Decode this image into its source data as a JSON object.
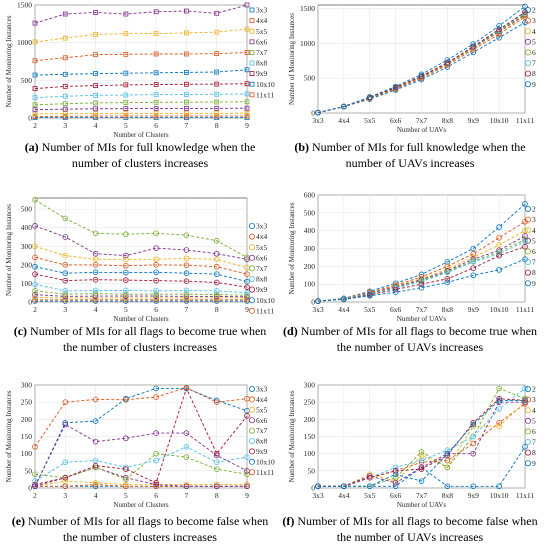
{
  "chart_data": [
    {
      "type": "line",
      "panel": "a",
      "caption_letter": "(a)",
      "caption_text": "Number of MIs for full knowledge when the number of clusters increases",
      "xlabel": "Number of Clusters",
      "ylabel": "Number of Monitoring Instances",
      "x": [
        2,
        3,
        4,
        5,
        6,
        7,
        8,
        9
      ],
      "x_ticks": [
        "2",
        "3",
        "4",
        "5",
        "6",
        "7",
        "8",
        "9"
      ],
      "y_ticks": [
        0,
        500,
        1000,
        1500
      ],
      "ylim": [
        0,
        1500
      ],
      "grid": true,
      "legend": "right",
      "series": [
        {
          "name": "3x3",
          "color": "#0072BD",
          "values": [
            5,
            5,
            5,
            5,
            5,
            5,
            5,
            5
          ]
        },
        {
          "name": "4x4",
          "color": "#D95319",
          "values": [
            20,
            22,
            25,
            25,
            25,
            25,
            25,
            25
          ]
        },
        {
          "name": "5x5",
          "color": "#EDB120",
          "values": [
            55,
            58,
            60,
            62,
            62,
            63,
            63,
            64
          ]
        },
        {
          "name": "6x6",
          "color": "#7E2F8E",
          "values": [
            110,
            118,
            122,
            125,
            126,
            127,
            128,
            130
          ]
        },
        {
          "name": "7x7",
          "color": "#77AC30",
          "values": [
            175,
            190,
            200,
            205,
            208,
            210,
            212,
            215
          ]
        },
        {
          "name": "8x8",
          "color": "#4DBEEE",
          "values": [
            270,
            290,
            300,
            305,
            310,
            312,
            315,
            320
          ]
        },
        {
          "name": "9x9",
          "color": "#A2142F",
          "values": [
            390,
            420,
            430,
            440,
            445,
            448,
            450,
            455
          ]
        },
        {
          "name": "10x10",
          "color": "#0072BD",
          "values": [
            570,
            580,
            590,
            595,
            600,
            605,
            610,
            640
          ]
        },
        {
          "name": "11x11",
          "color": "#D95319",
          "values": [
            760,
            800,
            840,
            845,
            850,
            850,
            855,
            870
          ]
        },
        {
          "name": "",
          "color": "#EDB120",
          "values": [
            1010,
            1060,
            1110,
            1120,
            1120,
            1130,
            1140,
            1180
          ]
        },
        {
          "name": "",
          "color": "#7E2F8E",
          "values": [
            1260,
            1380,
            1400,
            1380,
            1410,
            1420,
            1390,
            1520
          ]
        }
      ]
    },
    {
      "type": "line",
      "panel": "b",
      "caption_letter": "(b)",
      "caption_text": "Number of MIs for full knowledge when the number of UAVs increases",
      "xlabel": "Number of UAVs",
      "ylabel": "Number of Monitoring Instances",
      "x": [
        "3x3",
        "4x4",
        "5x5",
        "6x6",
        "7x7",
        "8x8",
        "9x9",
        "10x10",
        "11x11"
      ],
      "x_ticks": [
        "3x3",
        "4x4",
        "5x5",
        "6x6",
        "7x7",
        "8x8",
        "9x9",
        "10x10",
        "11x11"
      ],
      "y_ticks": [
        0,
        500,
        1000,
        1500
      ],
      "ylim": [
        0,
        1550
      ],
      "grid": true,
      "legend": "top-right",
      "series": [
        {
          "name": "2",
          "color": "#0072BD",
          "values": [
            5,
            90,
            200,
            330,
            480,
            660,
            870,
            1080,
            1300
          ]
        },
        {
          "name": "3",
          "color": "#D95319",
          "values": [
            5,
            90,
            210,
            345,
            500,
            690,
            910,
            1130,
            1380
          ]
        },
        {
          "name": "4",
          "color": "#EDB120",
          "values": [
            5,
            92,
            215,
            355,
            515,
            700,
            930,
            1160,
            1400
          ]
        },
        {
          "name": "5",
          "color": "#7E2F8E",
          "values": [
            5,
            92,
            220,
            360,
            520,
            710,
            940,
            1170,
            1410
          ]
        },
        {
          "name": "6",
          "color": "#77AC30",
          "values": [
            5,
            92,
            220,
            362,
            525,
            715,
            945,
            1180,
            1420
          ]
        },
        {
          "name": "7",
          "color": "#4DBEEE",
          "values": [
            5,
            93,
            222,
            365,
            530,
            720,
            950,
            1190,
            1440
          ]
        },
        {
          "name": "8",
          "color": "#A2142F",
          "values": [
            5,
            93,
            222,
            365,
            530,
            720,
            955,
            1200,
            1450
          ]
        },
        {
          "name": "9",
          "color": "#0072BD",
          "values": [
            5,
            93,
            230,
            380,
            555,
            760,
            990,
            1250,
            1530
          ]
        }
      ]
    },
    {
      "type": "line",
      "panel": "c",
      "caption_letter": "(c)",
      "caption_text": "Number of MIs for all flags to become true when the number of clusters increases",
      "xlabel": "Number of Clusters",
      "ylabel": "Number of Monitoring Instances",
      "x": [
        2,
        3,
        4,
        5,
        6,
        7,
        8,
        9
      ],
      "x_ticks": [
        "2",
        "3",
        "4",
        "5",
        "6",
        "7",
        "8",
        "9"
      ],
      "y_ticks": [
        0,
        100,
        200,
        300,
        400,
        500
      ],
      "ylim": [
        0,
        560
      ],
      "grid": true,
      "legend": "right",
      "series": [
        {
          "name": "3x3",
          "color": "#0072BD",
          "values": [
            5,
            5,
            5,
            5,
            5,
            5,
            5,
            5
          ]
        },
        {
          "name": "4x4",
          "color": "#D95319",
          "values": [
            12,
            12,
            12,
            12,
            12,
            12,
            12,
            12
          ]
        },
        {
          "name": "5x5",
          "color": "#EDB120",
          "values": [
            25,
            22,
            22,
            22,
            22,
            22,
            22,
            22
          ]
        },
        {
          "name": "6x6",
          "color": "#7E2F8E",
          "values": [
            40,
            30,
            32,
            32,
            32,
            30,
            30,
            28
          ]
        },
        {
          "name": "7x7",
          "color": "#77AC30",
          "values": [
            60,
            42,
            45,
            42,
            42,
            42,
            40,
            36
          ]
        },
        {
          "name": "8x8",
          "color": "#4DBEEE",
          "values": [
            95,
            60,
            62,
            62,
            60,
            62,
            60,
            50
          ]
        },
        {
          "name": "9x9",
          "color": "#A2142F",
          "values": [
            150,
            115,
            120,
            118,
            115,
            112,
            105,
            80
          ]
        },
        {
          "name": "10x10",
          "color": "#0072BD",
          "values": [
            190,
            155,
            160,
            158,
            160,
            155,
            150,
            110
          ]
        },
        {
          "name": "11x11",
          "color": "#D95319",
          "values": [
            240,
            200,
            200,
            195,
            200,
            198,
            190,
            150
          ]
        },
        {
          "name": "",
          "color": "#EDB120",
          "values": [
            300,
            250,
            230,
            230,
            230,
            235,
            230,
            185
          ]
        },
        {
          "name": "",
          "color": "#7E2F8E",
          "values": [
            410,
            350,
            260,
            250,
            290,
            280,
            260,
            230
          ]
        },
        {
          "name": "",
          "color": "#77AC30",
          "values": [
            550,
            450,
            370,
            365,
            370,
            360,
            330,
            240
          ]
        }
      ]
    },
    {
      "type": "line",
      "panel": "d",
      "caption_letter": "(d)",
      "caption_text": "Number of MIs for all flags to become true when the number of UAVs increases",
      "xlabel": "Number of UAVs",
      "ylabel": "Number of Monitoring Instances",
      "x": [
        "3x3",
        "4x4",
        "5x5",
        "6x6",
        "7x7",
        "8x8",
        "9x9",
        "10x10",
        "11x11"
      ],
      "x_ticks": [
        "3x3",
        "4x4",
        "5x5",
        "6x6",
        "7x7",
        "8x8",
        "9x9",
        "10x10",
        "11x11"
      ],
      "y_ticks": [
        0,
        100,
        200,
        300,
        400,
        500,
        600
      ],
      "ylim": [
        0,
        600
      ],
      "grid": true,
      "legend": "top-right",
      "series": [
        {
          "name": "2",
          "color": "#0072BD",
          "values": [
            5,
            20,
            60,
            105,
            155,
            225,
            300,
            420,
            550
          ]
        },
        {
          "name": "3",
          "color": "#D95319",
          "values": [
            5,
            20,
            55,
            95,
            140,
            200,
            270,
            360,
            450
          ]
        },
        {
          "name": "4",
          "color": "#EDB120",
          "values": [
            5,
            18,
            50,
            90,
            130,
            185,
            250,
            320,
            400
          ]
        },
        {
          "name": "5",
          "color": "#7E2F8E",
          "values": [
            5,
            18,
            48,
            85,
            125,
            175,
            240,
            290,
            370
          ]
        },
        {
          "name": "6",
          "color": "#77AC30",
          "values": [
            5,
            18,
            45,
            80,
            120,
            170,
            230,
            280,
            350
          ]
        },
        {
          "name": "7",
          "color": "#4DBEEE",
          "values": [
            5,
            18,
            45,
            78,
            115,
            165,
            225,
            270,
            340
          ]
        },
        {
          "name": "8",
          "color": "#A2142F",
          "values": [
            5,
            15,
            40,
            70,
            100,
            130,
            190,
            260,
            310
          ]
        },
        {
          "name": "9",
          "color": "#0072BD",
          "values": [
            5,
            15,
            35,
            55,
            80,
            110,
            150,
            180,
            240
          ]
        }
      ]
    },
    {
      "type": "line",
      "panel": "e",
      "caption_letter": "(e)",
      "caption_text": "Number of MIs for all flags to become false when the number of clusters increases",
      "xlabel": "Number of Clusters",
      "ylabel": "Number of Monitoring Instances",
      "x": [
        2,
        3,
        4,
        5,
        6,
        7,
        8,
        9
      ],
      "x_ticks": [
        "2",
        "3",
        "4",
        "5",
        "6",
        "7",
        "8",
        "9"
      ],
      "y_ticks": [
        0,
        50,
        100,
        150,
        200,
        250,
        300
      ],
      "ylim": [
        0,
        300
      ],
      "grid": true,
      "legend": "right",
      "series": [
        {
          "name": "3x3",
          "color": "#0072BD",
          "values": [
            5,
            5,
            5,
            5,
            5,
            5,
            5,
            5
          ]
        },
        {
          "name": "4x4",
          "color": "#D95319",
          "values": [
            5,
            5,
            10,
            5,
            5,
            5,
            5,
            5
          ]
        },
        {
          "name": "5x5",
          "color": "#EDB120",
          "values": [
            5,
            20,
            15,
            10,
            10,
            10,
            10,
            10
          ]
        },
        {
          "name": "6x6",
          "color": "#7E2F8E",
          "values": [
            5,
            30,
            60,
            30,
            10,
            5,
            5,
            5
          ]
        },
        {
          "name": "7x7",
          "color": "#77AC30",
          "values": [
            40,
            30,
            60,
            25,
            100,
            90,
            55,
            40
          ]
        },
        {
          "name": "8x8",
          "color": "#4DBEEE",
          "values": [
            20,
            75,
            80,
            60,
            80,
            120,
            75,
            90
          ]
        },
        {
          "name": "9x9",
          "color": "#A2142F",
          "values": [
            10,
            30,
            65,
            55,
            15,
            290,
            100,
            210
          ]
        },
        {
          "name": "10x10",
          "color": "#0072BD",
          "values": [
            5,
            190,
            195,
            260,
            290,
            290,
            255,
            225
          ]
        },
        {
          "name": "11x11",
          "color": "#D95319",
          "values": [
            120,
            250,
            258,
            257,
            265,
            292,
            250,
            260
          ]
        },
        {
          "name": "",
          "color": "#7E2F8E",
          "values": [
            5,
            185,
            135,
            145,
            160,
            160,
            95,
            50
          ]
        }
      ]
    },
    {
      "type": "line",
      "panel": "f",
      "caption_letter": "(f)",
      "caption_text": "Number of MIs for all flags to become false when the number of UAVs increases",
      "xlabel": "Number of UAVs",
      "ylabel": "Number of Monitoring Instances",
      "x": [
        "3x3",
        "4x4",
        "5x5",
        "6x6",
        "7x7",
        "8x8",
        "9x9",
        "10x10",
        "11x11"
      ],
      "x_ticks": [
        "3x3",
        "4x4",
        "5x5",
        "6x6",
        "7x7",
        "8x8",
        "9x9",
        "10x10",
        "11x11"
      ],
      "y_ticks": [
        0,
        50,
        100,
        150,
        200,
        250,
        300
      ],
      "ylim": [
        0,
        300
      ],
      "grid": true,
      "legend": "right",
      "series": [
        {
          "name": "2",
          "color": "#0072BD",
          "values": [
            5,
            5,
            5,
            5,
            60,
            5,
            5,
            5,
            120
          ]
        },
        {
          "name": "3",
          "color": "#D95319",
          "values": [
            5,
            5,
            30,
            50,
            75,
            80,
            130,
            190,
            245
          ]
        },
        {
          "name": "4",
          "color": "#EDB120",
          "values": [
            5,
            5,
            40,
            20,
            95,
            60,
            180,
            180,
            250
          ]
        },
        {
          "name": "5",
          "color": "#7E2F8E",
          "values": [
            5,
            5,
            35,
            15,
            60,
            100,
            100,
            250,
            250
          ]
        },
        {
          "name": "6",
          "color": "#77AC30",
          "values": [
            5,
            5,
            5,
            30,
            105,
            60,
            150,
            290,
            260
          ]
        },
        {
          "name": "7",
          "color": "#4DBEEE",
          "values": [
            5,
            5,
            30,
            60,
            80,
            110,
            150,
            230,
            290
          ]
        },
        {
          "name": "8",
          "color": "#A2142F",
          "values": [
            5,
            5,
            30,
            50,
            55,
            95,
            190,
            260,
            255
          ]
        },
        {
          "name": "9",
          "color": "#0072BD",
          "values": [
            5,
            5,
            5,
            40,
            20,
            100,
            185,
            255,
            255
          ]
        }
      ]
    }
  ]
}
